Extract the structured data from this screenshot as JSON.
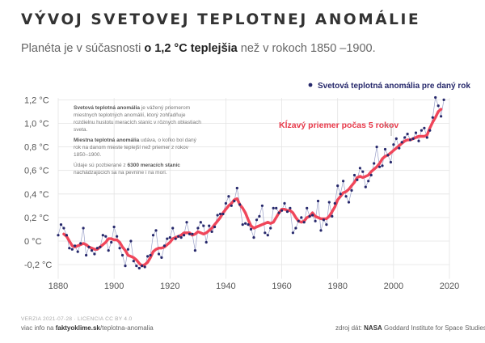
{
  "header": {
    "title": "VÝVOJ SVETOVEJ TEPLOTNEJ ANOMÁLIE",
    "subtitle_pre": "Planéta je v súčasnosti",
    "subtitle_bold": "o 1,2 °C teplejšia",
    "subtitle_post": "než v rokoch 1850 –1900."
  },
  "note": {
    "p1_bold": "Svetová teplotná anomália",
    "p1_text": "je vážený priemerom miestnych teplotných anomálií, ktorý zohľadňuje rozdielnu hustotu meracích staníc v rôznych oblastiach sveta.",
    "p2_bold": "Miestna teplotná anomália",
    "p2_text": "udáva, o koľko bol daný rok na danom mieste teplejší než priemer z rokov 1850–1900.",
    "p3_pre": "Údaje sú pozbierané z",
    "p3_bold": "6300 meracích staníc",
    "p3_post": "nachádzajúcich sa na pevnine i na mori."
  },
  "footer": {
    "version": "VERZIA 2021-07-28 · LICENCIA CC BY 4.0",
    "more_prefix": "viac info na",
    "more_bold": "faktyoklime.sk",
    "more_suffix": "/teplotna-anomalia",
    "source_prefix": "zdroj dát:",
    "source_bold": "NASA",
    "source_suffix": "Goddard Institute for Space Studies"
  },
  "colors": {
    "annual": "#26286b",
    "annual_line": "#9aa0c8",
    "moving_avg": "#f0465a",
    "grid": "#e4e4e4"
  },
  "chart_data": {
    "type": "line",
    "x_range": [
      1880,
      2020
    ],
    "y_range": [
      -0.3,
      1.25
    ],
    "x_ticks": [
      1880,
      1900,
      1920,
      1940,
      1960,
      1980,
      2000,
      2020
    ],
    "x_tick_labels": [
      "1880",
      "1900",
      "1920",
      "1940",
      "1960",
      "1980",
      "2000",
      "2020"
    ],
    "y_ticks": [
      -0.2,
      0,
      0.2,
      0.4,
      0.6,
      0.8,
      1.0,
      1.2
    ],
    "y_tick_labels": [
      "-0,2 °C",
      "0 °C",
      "0,2 °C",
      "0,4 °C",
      "0,6 °C",
      "0,8 °C",
      "1,0 °C",
      "1,2 °C"
    ],
    "grid": true,
    "legend": "top-right",
    "series": [
      {
        "name": "Svetová teplotná anomália pre daný rok",
        "style": "points",
        "x_start": 1880,
        "values": [
          0.05,
          0.14,
          0.11,
          0.05,
          -0.06,
          -0.07,
          -0.04,
          -0.09,
          -0.02,
          0.11,
          -0.12,
          -0.05,
          -0.08,
          -0.11,
          -0.06,
          -0.05,
          0.05,
          0.04,
          -0.08,
          -0.01,
          0.12,
          0.04,
          -0.06,
          -0.12,
          -0.21,
          -0.07,
          0.0,
          -0.17,
          -0.21,
          -0.23,
          -0.21,
          -0.22,
          -0.13,
          -0.12,
          0.05,
          0.09,
          -0.11,
          -0.14,
          -0.04,
          0.02,
          0.03,
          0.11,
          0.02,
          0.04,
          0.03,
          0.05,
          0.16,
          0.06,
          0.06,
          -0.08,
          0.11,
          0.16,
          0.13,
          -0.01,
          0.13,
          0.08,
          0.12,
          0.22,
          0.23,
          0.23,
          0.32,
          0.38,
          0.3,
          0.34,
          0.45,
          0.31,
          0.14,
          0.15,
          0.14,
          0.1,
          0.03,
          0.18,
          0.21,
          0.3,
          0.07,
          0.05,
          0.11,
          0.28,
          0.28,
          0.24,
          0.26,
          0.32,
          0.25,
          0.28,
          0.07,
          0.11,
          0.17,
          0.2,
          0.16,
          0.28,
          0.21,
          0.22,
          0.17,
          0.34,
          0.09,
          0.18,
          0.14,
          0.33,
          0.21,
          0.32,
          0.47,
          0.4,
          0.51,
          0.38,
          0.33,
          0.43,
          0.56,
          0.52,
          0.62,
          0.59,
          0.46,
          0.51,
          0.56,
          0.66,
          0.8,
          0.63,
          0.64,
          0.78,
          0.73,
          0.67,
          0.82,
          0.87,
          0.79,
          0.84,
          0.88,
          0.91,
          0.86,
          0.87,
          0.92,
          0.85,
          0.94,
          0.96,
          0.88,
          0.94,
          1.05,
          1.22,
          1.15,
          1.06,
          1.2
        ]
      },
      {
        "name": "Kĺzavý priemer počas 5 rokov",
        "style": "line",
        "x_start": 1882,
        "values": [
          0.06,
          0.04,
          0.0,
          -0.04,
          -0.05,
          -0.04,
          -0.03,
          -0.02,
          -0.03,
          -0.05,
          -0.06,
          -0.07,
          -0.07,
          -0.05,
          -0.03,
          -0.01,
          0.02,
          0.02,
          0.01,
          0.01,
          -0.01,
          -0.05,
          -0.08,
          -0.12,
          -0.13,
          -0.14,
          -0.16,
          -0.19,
          -0.21,
          -0.2,
          -0.18,
          -0.14,
          -0.09,
          -0.07,
          -0.06,
          -0.06,
          -0.05,
          -0.03,
          -0.01,
          0.02,
          0.03,
          0.04,
          0.05,
          0.07,
          0.07,
          0.07,
          0.05,
          0.06,
          0.08,
          0.07,
          0.06,
          0.07,
          0.09,
          0.11,
          0.14,
          0.17,
          0.2,
          0.24,
          0.27,
          0.3,
          0.32,
          0.35,
          0.36,
          0.31,
          0.28,
          0.24,
          0.18,
          0.13,
          0.11,
          0.12,
          0.13,
          0.14,
          0.15,
          0.16,
          0.15,
          0.16,
          0.2,
          0.24,
          0.27,
          0.27,
          0.26,
          0.26,
          0.24,
          0.2,
          0.17,
          0.16,
          0.17,
          0.2,
          0.21,
          0.24,
          0.21,
          0.2,
          0.19,
          0.19,
          0.19,
          0.21,
          0.25,
          0.29,
          0.35,
          0.38,
          0.41,
          0.42,
          0.44,
          0.47,
          0.5,
          0.54,
          0.55,
          0.54,
          0.55,
          0.56,
          0.59,
          0.61,
          0.63,
          0.66,
          0.7,
          0.72,
          0.73,
          0.75,
          0.77,
          0.79,
          0.81,
          0.83,
          0.85,
          0.86,
          0.86,
          0.87,
          0.88,
          0.89,
          0.89,
          0.89,
          0.9,
          0.96,
          1.01,
          1.05,
          1.1,
          1.12
        ]
      }
    ],
    "annotations": [
      "Svetová teplotná anomália pre daný rok",
      "Kĺzavý priemer počas 5 rokov"
    ]
  }
}
